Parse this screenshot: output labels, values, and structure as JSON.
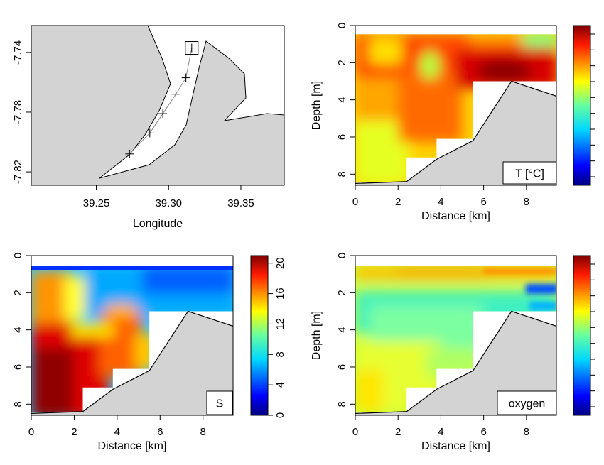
{
  "chart_data": [
    {
      "id": "map",
      "type": "map",
      "xlabel": "Longitude",
      "ylabel": "",
      "xlim": [
        39.205,
        39.38
      ],
      "ylim": [
        -7.829,
        -7.722
      ],
      "xticks": [
        39.25,
        39.3,
        39.35
      ],
      "yticks": [
        -7.74,
        -7.78,
        -7.82
      ],
      "x_tick_labels": [
        "39.25",
        "39.30",
        "39.35"
      ],
      "y_tick_labels": [
        "-7.74",
        "-7.78",
        "-7.82"
      ],
      "stations": [
        {
          "lon": 39.316,
          "lat": -7.737
        },
        {
          "lon": 39.312,
          "lat": -7.757
        },
        {
          "lon": 39.305,
          "lat": -7.768
        },
        {
          "lon": 39.296,
          "lat": -7.781
        },
        {
          "lon": 39.287,
          "lat": -7.794
        },
        {
          "lon": 39.273,
          "lat": -7.808
        }
      ],
      "highlighted_station": 0
    },
    {
      "id": "temperature",
      "type": "heatmap",
      "xlabel": "Distance [km]",
      "ylabel": "Depth [m]",
      "xlim": [
        0,
        9.4
      ],
      "ylim": [
        8.6,
        0
      ],
      "xticks": [
        0,
        2,
        4,
        6,
        8
      ],
      "yticks": [
        0,
        2,
        4,
        6,
        8
      ],
      "x_tick_labels": [
        "0",
        "2",
        "4",
        "6",
        "8"
      ],
      "y_tick_labels": [
        "0",
        "2",
        "4",
        "6",
        "8"
      ],
      "legend": "T [°C]",
      "colorbar_ticks": []
    },
    {
      "id": "salinity",
      "type": "heatmap",
      "xlabel": "Distance [km]",
      "ylabel": "",
      "xlim": [
        0,
        9.4
      ],
      "ylim": [
        8.6,
        0
      ],
      "xticks": [
        0,
        2,
        4,
        6,
        8
      ],
      "yticks": [
        0,
        2,
        4,
        6,
        8
      ],
      "x_tick_labels": [
        "0",
        "2",
        "4",
        "6",
        "8"
      ],
      "y_tick_labels": [
        "0",
        "2",
        "4",
        "6",
        "8"
      ],
      "legend": "S",
      "colorbar_range": [
        0,
        21
      ],
      "colorbar_ticks": [
        0,
        4,
        8,
        12,
        16,
        20
      ],
      "colorbar_tick_labels": [
        "0",
        "4",
        "8",
        "12",
        "16",
        "20"
      ]
    },
    {
      "id": "oxygen",
      "type": "heatmap",
      "xlabel": "Distance [km]",
      "ylabel": "Depth [m]",
      "xlim": [
        0,
        9.4
      ],
      "ylim": [
        8.6,
        0
      ],
      "xticks": [
        0,
        2,
        4,
        6,
        8
      ],
      "yticks": [
        0,
        2,
        4,
        6,
        8
      ],
      "x_tick_labels": [
        "0",
        "2",
        "4",
        "6",
        "8"
      ],
      "y_tick_labels": [
        "0",
        "2",
        "4",
        "6",
        "8"
      ],
      "legend": "oxygen",
      "colorbar_ticks": []
    }
  ]
}
